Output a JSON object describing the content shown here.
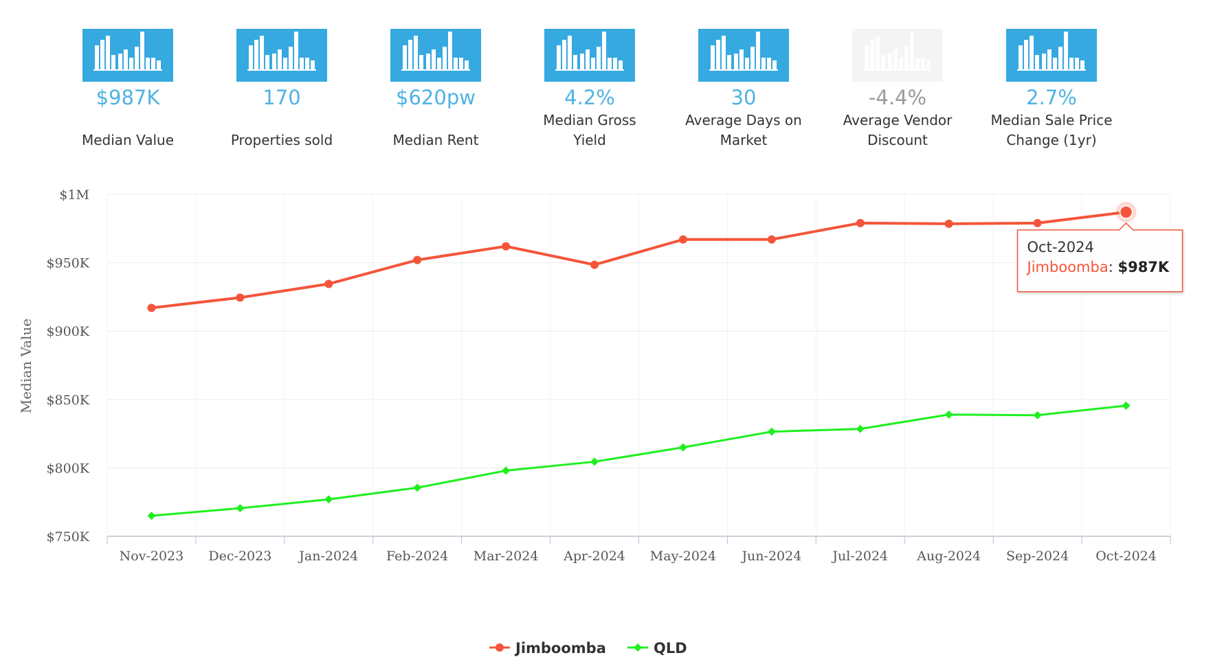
{
  "stats": [
    {
      "value": "$987K",
      "label_lines": [
        "Median Value"
      ],
      "muted": false
    },
    {
      "value": "170",
      "label_lines": [
        "Properties sold"
      ],
      "muted": false
    },
    {
      "value": "$620pw",
      "label_lines": [
        "Median Rent"
      ],
      "muted": false
    },
    {
      "value": "4.2%",
      "label_lines": [
        "Median Gross",
        "Yield"
      ],
      "muted": false
    },
    {
      "value": "30",
      "label_lines": [
        "Average Days on",
        "Market"
      ],
      "muted": false
    },
    {
      "value": "-4.4%",
      "label_lines": [
        "Average Vendor",
        "Discount"
      ],
      "muted": true
    },
    {
      "value": "2.7%",
      "label_lines": [
        "Median Sale Price",
        "Change (1yr)"
      ],
      "muted": false
    }
  ],
  "icon_name": "bar-chart-icon",
  "colors": {
    "accent": "#36a9e1",
    "value_text": "#4eb3e3",
    "muted_value": "#9a9a9a",
    "jimboomba": "#f4553a",
    "qld": "#1ef01e"
  },
  "chart_data": {
    "type": "line",
    "title": "",
    "xlabel": "",
    "ylabel": "Median Value",
    "categories": [
      "Nov-2023",
      "Dec-2023",
      "Jan-2024",
      "Feb-2024",
      "Mar-2024",
      "Apr-2024",
      "May-2024",
      "Jun-2024",
      "Jul-2024",
      "Aug-2024",
      "Sep-2024",
      "Oct-2024"
    ],
    "ylim": [
      750000,
      1000000
    ],
    "yticks": [
      750000,
      800000,
      850000,
      900000,
      950000,
      1000000
    ],
    "ytick_labels": [
      "$750K",
      "$800K",
      "$850K",
      "$900K",
      "$950K",
      "$1M"
    ],
    "series": [
      {
        "name": "Jimboomba",
        "marker": "circle",
        "values": [
          917000,
          924500,
          934500,
          952000,
          962000,
          948500,
          967000,
          967000,
          979000,
          978500,
          979000,
          987000
        ]
      },
      {
        "name": "QLD",
        "marker": "diamond",
        "values": [
          765000,
          770500,
          777000,
          785500,
          798000,
          804500,
          815000,
          826500,
          828500,
          839000,
          838500,
          845500
        ]
      }
    ],
    "legend_position": "bottom-center",
    "tooltip": {
      "category": "Oct-2024",
      "series": "Jimboomba",
      "separator": ": ",
      "value": "$987K"
    }
  }
}
